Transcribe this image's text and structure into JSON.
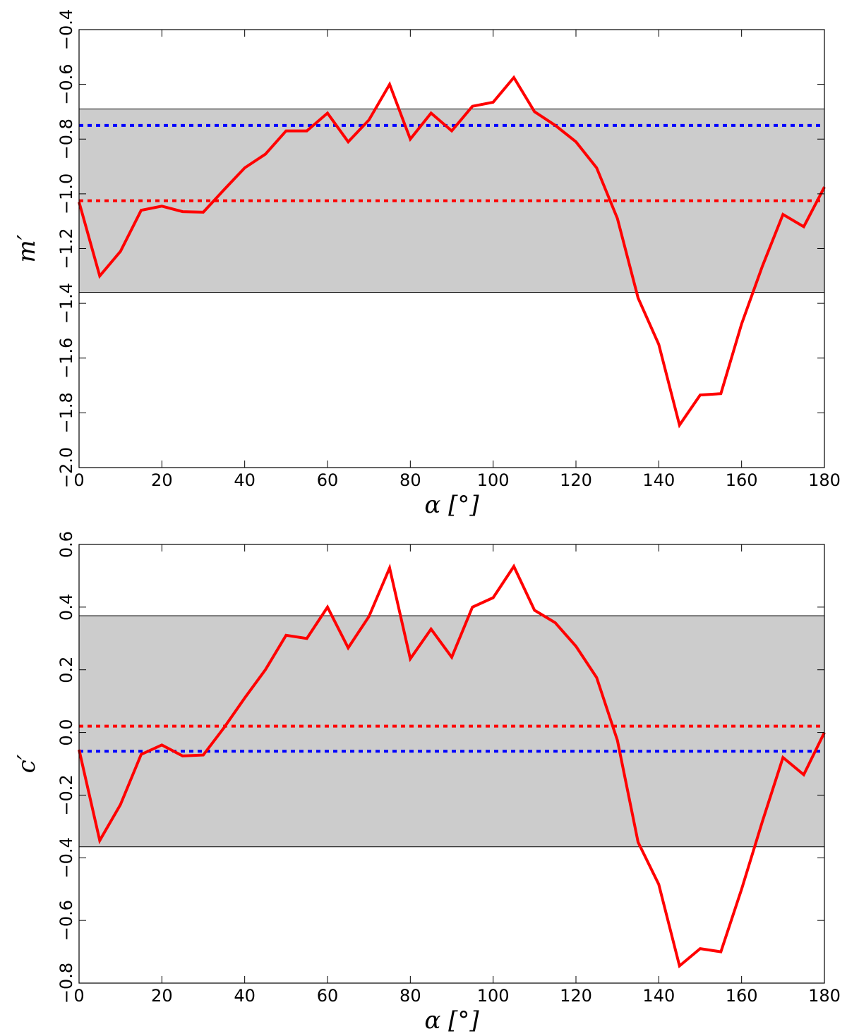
{
  "chart_data": [
    {
      "type": "line",
      "title": "",
      "xlabel": "α [°]",
      "ylabel": "m′",
      "xlim": [
        0,
        180
      ],
      "ylim": [
        -2.0,
        -0.4
      ],
      "xticks": [
        0,
        20,
        40,
        60,
        80,
        100,
        120,
        140,
        160,
        180
      ],
      "yticks": [
        -2.0,
        -1.8,
        -1.6,
        -1.4,
        -1.2,
        -1.0,
        -0.8,
        -0.6,
        -0.4
      ],
      "x_tick_labels": [
        "0",
        "20",
        "40",
        "60",
        "80",
        "100",
        "120",
        "140",
        "160",
        "180"
      ],
      "y_tick_labels": [
        "−2.0",
        "−1.8",
        "−1.6",
        "−1.4",
        "−1.2",
        "−1.0",
        "−0.8",
        "−0.6",
        "−0.4"
      ],
      "grid": false,
      "band": {
        "from": -1.36,
        "to": -0.69,
        "color": "#cccccc"
      },
      "hlines": [
        {
          "y": -0.75,
          "color": "#0000ff",
          "style": "dotted"
        },
        {
          "y": -1.025,
          "color": "#ff0000",
          "style": "dotted"
        }
      ],
      "series": [
        {
          "color": "#ff0000",
          "x": [
            0,
            5,
            10,
            15,
            20,
            25,
            30,
            35,
            40,
            45,
            50,
            55,
            60,
            65,
            70,
            75,
            80,
            85,
            90,
            95,
            100,
            105,
            110,
            115,
            120,
            125,
            130,
            135,
            140,
            145,
            150,
            155,
            160,
            165,
            170,
            175,
            180
          ],
          "y": [
            -1.03,
            -1.3,
            -1.21,
            -1.06,
            -1.045,
            -1.065,
            -1.067,
            -0.985,
            -0.905,
            -0.855,
            -0.77,
            -0.77,
            -0.705,
            -0.81,
            -0.73,
            -0.6,
            -0.8,
            -0.705,
            -0.77,
            -0.68,
            -0.665,
            -0.575,
            -0.7,
            -0.75,
            -0.81,
            -0.905,
            -1.09,
            -1.38,
            -1.55,
            -1.845,
            -1.735,
            -1.73,
            -1.475,
            -1.265,
            -1.075,
            -1.12,
            -0.975
          ]
        }
      ]
    },
    {
      "type": "line",
      "title": "",
      "xlabel": "α [°]",
      "ylabel": "c′",
      "xlim": [
        0,
        180
      ],
      "ylim": [
        -0.8,
        0.6
      ],
      "xticks": [
        0,
        20,
        40,
        60,
        80,
        100,
        120,
        140,
        160,
        180
      ],
      "yticks": [
        -0.8,
        -0.6,
        -0.4,
        -0.2,
        0.0,
        0.2,
        0.4,
        0.6
      ],
      "x_tick_labels": [
        "0",
        "20",
        "40",
        "60",
        "80",
        "100",
        "120",
        "140",
        "160",
        "180"
      ],
      "y_tick_labels": [
        "−0.8",
        "−0.6",
        "−0.4",
        "−0.2",
        "0.0",
        "0.2",
        "0.4",
        "0.6"
      ],
      "grid": false,
      "band": {
        "from": -0.365,
        "to": 0.3725,
        "color": "#cccccc"
      },
      "hlines": [
        {
          "y": 0.02,
          "color": "#ff0000",
          "style": "dotted"
        },
        {
          "y": -0.06,
          "color": "#0000ff",
          "style": "dotted"
        }
      ],
      "series": [
        {
          "color": "#ff0000",
          "x": [
            0,
            5,
            10,
            15,
            20,
            25,
            30,
            35,
            40,
            45,
            50,
            55,
            60,
            65,
            70,
            75,
            80,
            85,
            90,
            95,
            100,
            105,
            110,
            115,
            120,
            125,
            130,
            135,
            140,
            145,
            150,
            155,
            160,
            165,
            170,
            175,
            180
          ],
          "y": [
            -0.055,
            -0.345,
            -0.23,
            -0.07,
            -0.04,
            -0.075,
            -0.072,
            0.015,
            0.11,
            0.2,
            0.31,
            0.3,
            0.4,
            0.27,
            0.37,
            0.525,
            0.235,
            0.33,
            0.24,
            0.4,
            0.43,
            0.53,
            0.39,
            0.35,
            0.275,
            0.175,
            -0.025,
            -0.35,
            -0.485,
            -0.745,
            -0.69,
            -0.7,
            -0.5,
            -0.285,
            -0.08,
            -0.135,
            0.0
          ]
        }
      ]
    }
  ]
}
